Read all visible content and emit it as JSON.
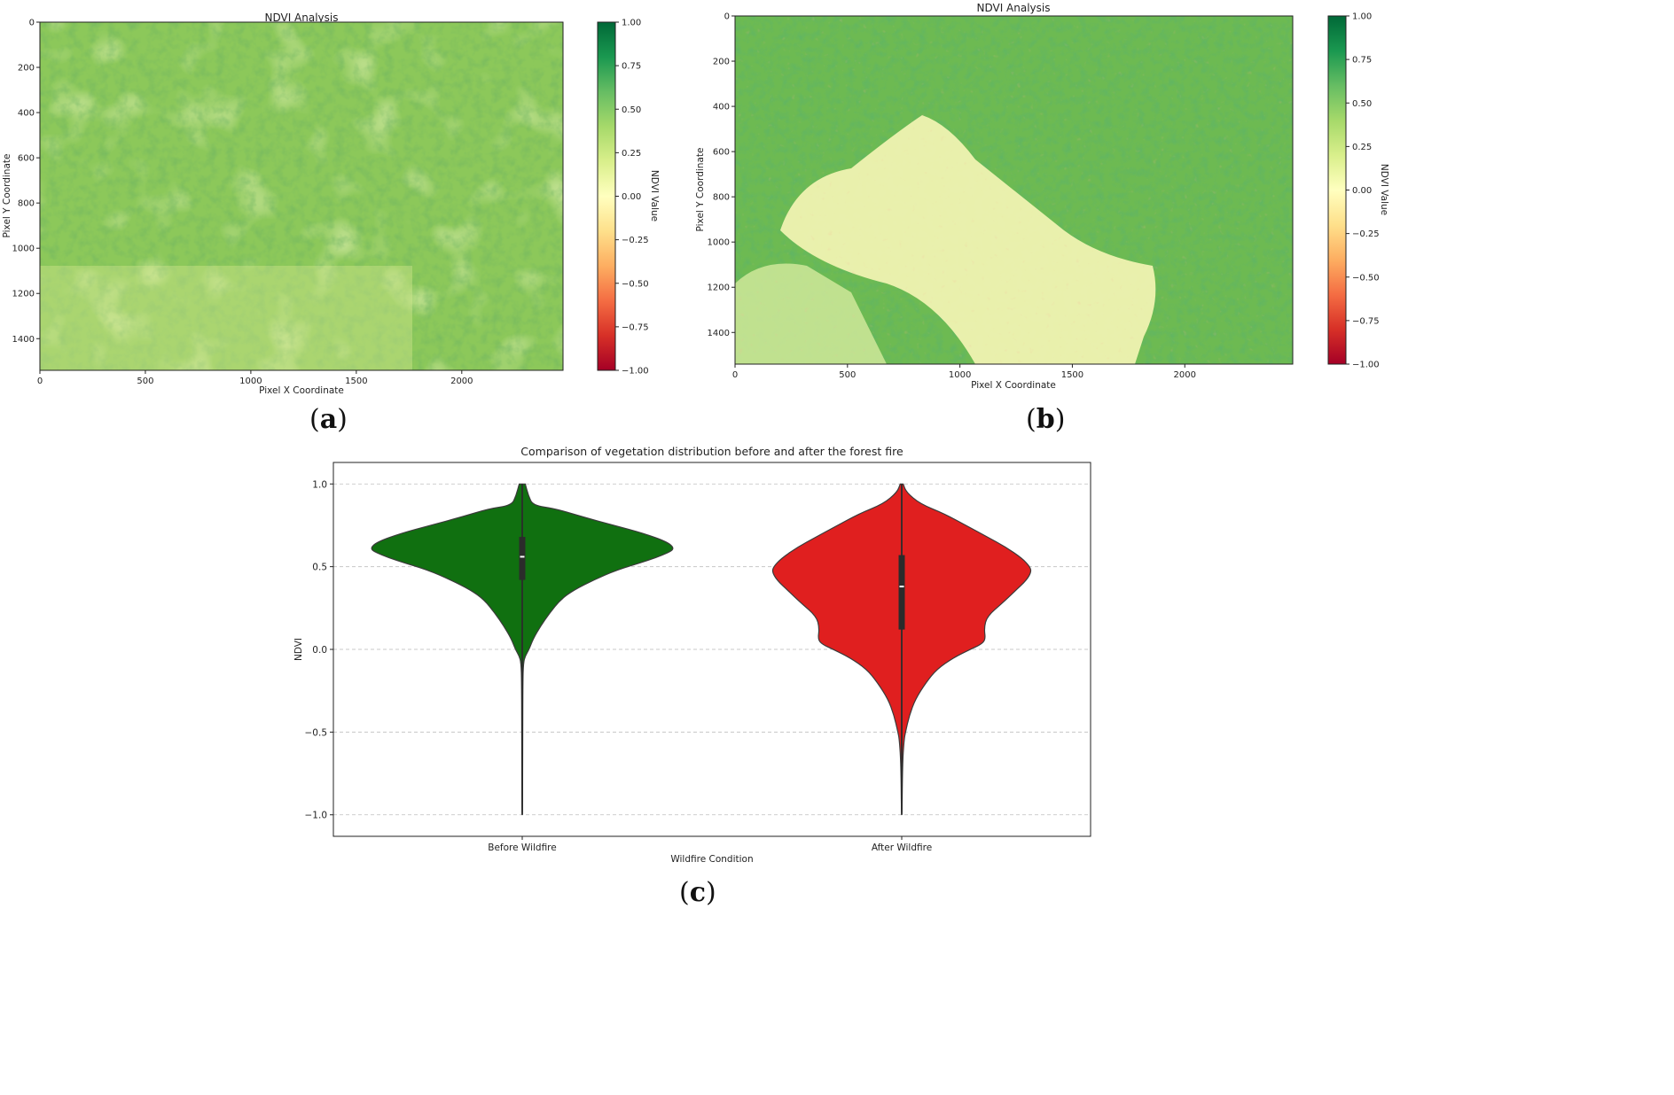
{
  "panel_labels": {
    "a": {
      "open": "(",
      "letter": "a",
      "close": ")"
    },
    "b": {
      "open": "(",
      "letter": "b",
      "close": ")"
    },
    "c": {
      "open": "(",
      "letter": "c",
      "close": ")"
    }
  },
  "colors": {
    "before": "#107010",
    "after": "#e01f1f",
    "colormap": [
      "#a50026",
      "#d73027",
      "#f46d43",
      "#fdae61",
      "#fee08b",
      "#ffffbf",
      "#d9ef8b",
      "#a6d96a",
      "#66bd63",
      "#1a9850",
      "#006837"
    ]
  },
  "chart_data": [
    {
      "id": "a",
      "type": "heatmap",
      "title": "NDVI Analysis",
      "xlabel": "Pixel X Coordinate",
      "ylabel": "Pixel Y Coordinate",
      "xlim": [
        0,
        2480
      ],
      "ylim": [
        1540,
        0
      ],
      "xticks": [
        0,
        500,
        1000,
        1500,
        2000
      ],
      "yticks": [
        0,
        200,
        400,
        600,
        800,
        1000,
        1200,
        1400
      ],
      "colorbar": {
        "label": "NDVI Value",
        "range": [
          -1.0,
          1.0
        ],
        "ticks": [
          "1.00",
          "0.75",
          "0.50",
          "0.25",
          "0.00",
          "−0.25",
          "−0.50",
          "−0.75",
          "−1.00"
        ]
      },
      "colormap": "RdYlGn"
    },
    {
      "id": "b",
      "type": "heatmap",
      "title": "NDVI Analysis",
      "xlabel": "Pixel X Coordinate",
      "ylabel": "Pixel Y Coordinate",
      "xlim": [
        0,
        2480
      ],
      "ylim": [
        1540,
        0
      ],
      "xticks": [
        0,
        500,
        1000,
        1500,
        2000
      ],
      "yticks": [
        0,
        200,
        400,
        600,
        800,
        1000,
        1200,
        1400
      ],
      "colorbar": {
        "label": "NDVI Value",
        "range": [
          -1.0,
          1.0
        ],
        "ticks": [
          "1.00",
          "0.75",
          "0.50",
          "0.25",
          "0.00",
          "−0.25",
          "−0.50",
          "−0.75",
          "−1.00"
        ]
      },
      "colormap": "RdYlGn"
    },
    {
      "id": "c",
      "type": "violin",
      "title": "Comparison of vegetation distribution before and after the forest fire",
      "xlabel": "Wildfire Condition",
      "ylabel": "NDVI",
      "categories": [
        "Before Wildfire",
        "After Wildfire"
      ],
      "ylim": [
        -1.13,
        1.13
      ],
      "yticks": [
        1.0,
        0.5,
        0.0,
        -0.5,
        -1.0
      ],
      "ytick_labels": [
        "1.0",
        "0.5",
        "0.0",
        "−0.5",
        "−1.0"
      ],
      "grid": true,
      "series": [
        {
          "name": "Before Wildfire",
          "color": "#107010",
          "profile": [
            [
              1.0,
              0.02
            ],
            [
              0.93,
              0.04
            ],
            [
              0.87,
              0.07
            ],
            [
              0.85,
              0.22
            ],
            [
              0.8,
              0.4
            ],
            [
              0.75,
              0.6
            ],
            [
              0.7,
              0.8
            ],
            [
              0.65,
              0.95
            ],
            [
              0.61,
              1.0
            ],
            [
              0.58,
              0.95
            ],
            [
              0.53,
              0.8
            ],
            [
              0.48,
              0.62
            ],
            [
              0.42,
              0.47
            ],
            [
              0.36,
              0.34
            ],
            [
              0.3,
              0.25
            ],
            [
              0.22,
              0.18
            ],
            [
              0.14,
              0.12
            ],
            [
              0.06,
              0.07
            ],
            [
              0.0,
              0.045
            ],
            [
              -0.04,
              0.02
            ],
            [
              -0.08,
              0.008
            ],
            [
              -0.2,
              0.004
            ],
            [
              -0.6,
              0.003
            ],
            [
              -1.0,
              0.002
            ]
          ],
          "box": {
            "q1": 0.42,
            "median": 0.56,
            "q3": 0.68
          },
          "whisker": [
            -1.0,
            1.0
          ]
        },
        {
          "name": "After Wildfire",
          "color": "#e01f1f",
          "profile": [
            [
              1.0,
              0.01
            ],
            [
              0.95,
              0.03
            ],
            [
              0.88,
              0.12
            ],
            [
              0.82,
              0.28
            ],
            [
              0.74,
              0.44
            ],
            [
              0.68,
              0.56
            ],
            [
              0.62,
              0.68
            ],
            [
              0.55,
              0.79
            ],
            [
              0.5,
              0.84
            ],
            [
              0.47,
              0.85
            ],
            [
              0.42,
              0.82
            ],
            [
              0.35,
              0.74
            ],
            [
              0.28,
              0.66
            ],
            [
              0.2,
              0.56
            ],
            [
              0.13,
              0.54
            ],
            [
              0.06,
              0.55
            ],
            [
              0.03,
              0.52
            ],
            [
              0.0,
              0.45
            ],
            [
              -0.05,
              0.34
            ],
            [
              -0.12,
              0.23
            ],
            [
              -0.2,
              0.16
            ],
            [
              -0.3,
              0.09
            ],
            [
              -0.4,
              0.05
            ],
            [
              -0.5,
              0.025
            ],
            [
              -0.55,
              0.015
            ],
            [
              -0.7,
              0.005
            ],
            [
              -1.0,
              0.002
            ]
          ],
          "box": {
            "q1": 0.12,
            "median": 0.38,
            "q3": 0.57
          },
          "whisker": [
            -1.0,
            1.0
          ]
        }
      ]
    }
  ]
}
